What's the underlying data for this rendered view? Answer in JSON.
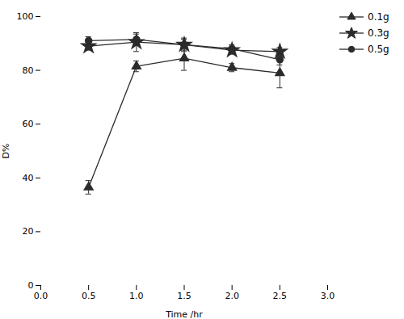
{
  "chart_data": {
    "type": "line",
    "xlabel": "Time /hr",
    "ylabel": "D%",
    "x": [
      0.5,
      1.0,
      1.5,
      2.0,
      2.5
    ],
    "series": [
      {
        "name": "0.1g",
        "color": "#2b2b2b",
        "marker": "triangle",
        "values": [
          36.5,
          81.5,
          84.5,
          81.0,
          79.0
        ],
        "errors": [
          2.5,
          2.0,
          4.5,
          1.5,
          5.5
        ]
      },
      {
        "name": "0.3g",
        "color": "#2b2b2b",
        "marker": "star",
        "values": [
          89.0,
          90.5,
          89.5,
          87.5,
          87.0
        ],
        "errors": [
          1.5,
          3.5,
          2.0,
          1.5,
          1.5
        ]
      },
      {
        "name": "0.5g",
        "color": "#2b2b2b",
        "marker": "circle",
        "values": [
          91.0,
          91.5,
          89.5,
          88.0,
          84.0
        ],
        "errors": [
          1.5,
          2.0,
          2.5,
          1.5,
          2.0
        ]
      }
    ],
    "xlim": [
      0,
      3
    ],
    "xticks": [
      {
        "value": 0,
        "label": "0.0"
      },
      0.5,
      {
        "value": 1,
        "label": "1.0"
      },
      1.5,
      {
        "value": 2,
        "label": "2.0"
      },
      2.5,
      {
        "value": 3,
        "label": "3.0"
      }
    ],
    "ylim": [
      0,
      100
    ],
    "yticks": [
      0,
      20,
      40,
      60,
      80,
      100
    ],
    "grid": false,
    "legend": "right"
  }
}
